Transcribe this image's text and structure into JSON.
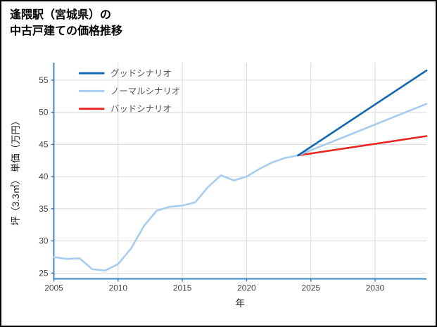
{
  "title_lines": [
    "逢隈駅（宮城県）の",
    "中古戸建ての価格推移"
  ],
  "chart_data": {
    "type": "line",
    "title": "逢隈駅（宮城県）の中古戸建ての価格推移",
    "xlabel": "年",
    "ylabel": "坪（3.3㎡） 単価（万円）",
    "xlim": [
      2005,
      2034
    ],
    "ylim": [
      24.1,
      57.7
    ],
    "xticks": [
      2005,
      2010,
      2015,
      2020,
      2025,
      2030
    ],
    "yticks": [
      25,
      30,
      35,
      40,
      45,
      50,
      55
    ],
    "grid": true,
    "legend_position": "upper-left",
    "colors": {
      "axis": "#2e7dbe",
      "grid": "#d8d8d8",
      "tick_label": "#444444",
      "axis_label": "#1a1a1a",
      "legend_text": "#555555"
    },
    "series": [
      {
        "name": "グッドシナリオ",
        "color": "#1268b3",
        "x": [
          2024,
          2034
        ],
        "values": [
          43.3,
          56.5
        ]
      },
      {
        "name": "ノーマルシナリオ",
        "color": "#a6cdf0",
        "x": [
          2005,
          2006,
          2007,
          2008,
          2009,
          2010,
          2011,
          2012,
          2013,
          2014,
          2015,
          2016,
          2017,
          2018,
          2019,
          2020,
          2021,
          2022,
          2023,
          2024,
          2034
        ],
        "values": [
          27.5,
          27.2,
          27.3,
          25.6,
          25.4,
          26.4,
          28.8,
          32.3,
          34.7,
          35.3,
          35.5,
          36.0,
          38.4,
          40.2,
          39.4,
          40.0,
          41.2,
          42.2,
          42.9,
          43.3,
          51.3
        ]
      },
      {
        "name": "バッドシナリオ",
        "color": "#e8251f",
        "x": [
          2024,
          2034
        ],
        "values": [
          43.3,
          46.3
        ]
      }
    ]
  }
}
